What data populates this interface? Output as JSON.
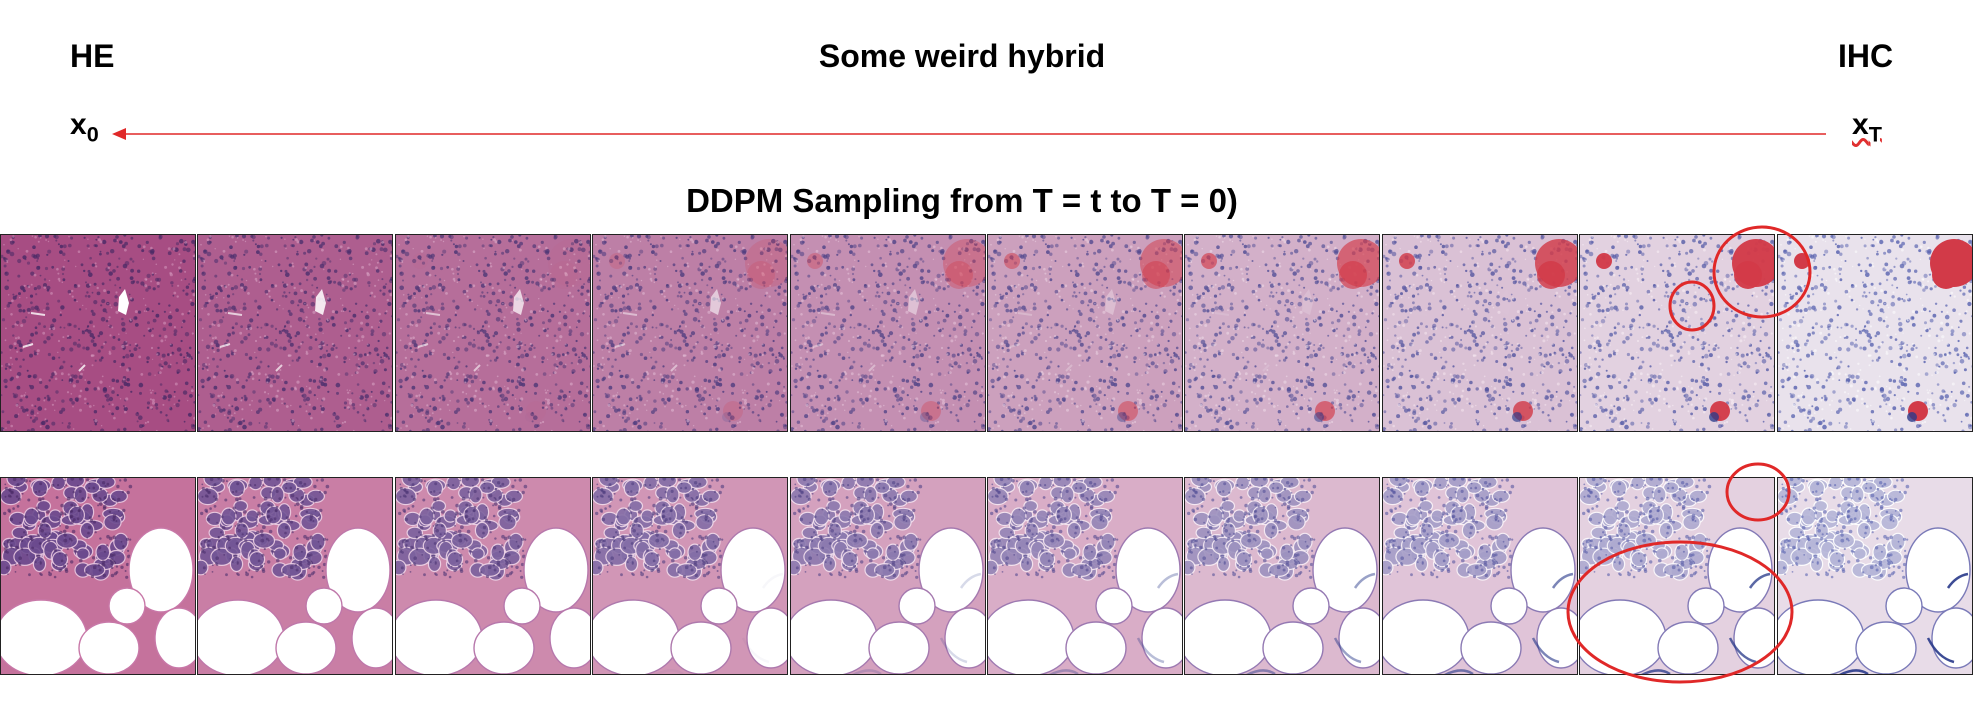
{
  "labels": {
    "left_stain": "HE",
    "right_stain": "IHC",
    "middle": "Some weird hybrid",
    "x0_main": "x",
    "x0_sub": "0",
    "xt_main": "x",
    "xt_sub": "T",
    "subtitle": "DDPM Sampling from T = t to T = 0)"
  },
  "colors": {
    "arrow": "#e02828",
    "circle": "#e02828",
    "he_bg": "#a74d83",
    "ihc_bg": "#e9e2ec",
    "nuclei_he": "#4a2a66",
    "nuclei_ihc": "#5a64b0",
    "positive_stain": "#d23a48"
  },
  "strips": [
    {
      "name": "row-pancreas-islets",
      "tiles": 10,
      "features": [
        "islet-red-stain",
        "vessel-white-hole"
      ]
    },
    {
      "name": "row-pancreas-fat",
      "tiles": 10,
      "features": [
        "acinar-clusters",
        "fat-cells"
      ]
    }
  ]
}
